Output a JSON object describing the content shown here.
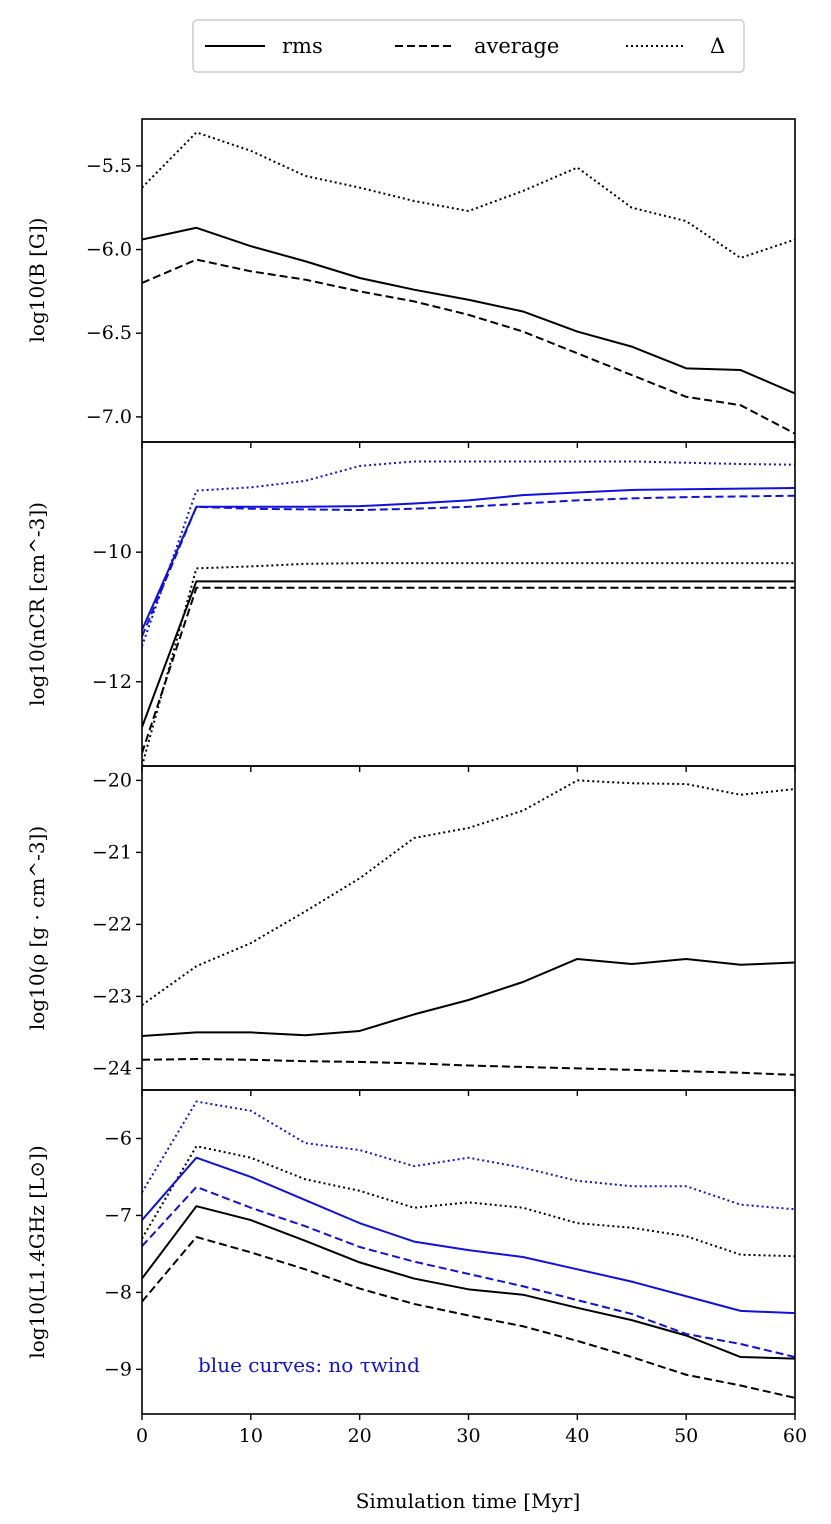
{
  "legend": {
    "location": "top-center",
    "entries": [
      {
        "label": "rms",
        "linestyle": "solid"
      },
      {
        "label": "average",
        "linestyle": "dashed"
      },
      {
        "label": "Δ",
        "linestyle": "dotted"
      }
    ]
  },
  "colors": {
    "black": "#000000",
    "blue": "#1010e0"
  },
  "chart_data": [
    {
      "type": "line",
      "panel": "B",
      "ylabel": "log10(B [G])",
      "ylim": [
        -7.15,
        -5.22
      ],
      "yticks": [
        -7.0,
        -6.5,
        -6.0,
        -5.5
      ],
      "ytick_labels": [
        "−7.0",
        "−6.5",
        "−6.0",
        "−5.5"
      ],
      "x": [
        0,
        5,
        10,
        15,
        20,
        25,
        30,
        35,
        40,
        45,
        50,
        55,
        60
      ],
      "series": [
        {
          "name": "rms",
          "color": "black",
          "style": "solid",
          "values": [
            -5.94,
            -5.87,
            -5.98,
            -6.07,
            -6.17,
            -6.24,
            -6.3,
            -6.37,
            -6.49,
            -6.58,
            -6.71,
            -6.72,
            -6.86
          ]
        },
        {
          "name": "average",
          "color": "black",
          "style": "dashed",
          "values": [
            -6.2,
            -6.06,
            -6.13,
            -6.18,
            -6.25,
            -6.31,
            -6.39,
            -6.49,
            -6.62,
            -6.75,
            -6.88,
            -6.93,
            -7.1
          ]
        },
        {
          "name": "Δ",
          "color": "black",
          "style": "dotted",
          "values": [
            -5.63,
            -5.3,
            -5.41,
            -5.56,
            -5.63,
            -5.71,
            -5.77,
            -5.65,
            -5.51,
            -5.75,
            -5.83,
            -6.05,
            -5.94
          ]
        }
      ]
    },
    {
      "type": "line",
      "panel": "nCR",
      "ylabel": "log10(nCR [cm^-3])",
      "ylim": [
        -13.3,
        -8.3
      ],
      "yticks": [
        -12,
        -10
      ],
      "ytick_labels": [
        "−12",
        "−10"
      ],
      "x": [
        0,
        5,
        10,
        15,
        20,
        25,
        30,
        35,
        40,
        45,
        50,
        55,
        60
      ],
      "series": [
        {
          "name": "rms",
          "color": "black",
          "style": "solid",
          "values": [
            -12.7,
            -10.45,
            -10.45,
            -10.45,
            -10.45,
            -10.45,
            -10.45,
            -10.45,
            -10.45,
            -10.45,
            -10.45,
            -10.45,
            -10.45
          ]
        },
        {
          "name": "average",
          "color": "black",
          "style": "dashed",
          "values": [
            -13.1,
            -10.55,
            -10.55,
            -10.55,
            -10.55,
            -10.55,
            -10.55,
            -10.55,
            -10.55,
            -10.55,
            -10.55,
            -10.55,
            -10.55
          ]
        },
        {
          "name": "Δ",
          "color": "black",
          "style": "dotted",
          "values": [
            -13.3,
            -10.25,
            -10.22,
            -10.18,
            -10.17,
            -10.17,
            -10.17,
            -10.17,
            -10.17,
            -10.17,
            -10.17,
            -10.17,
            -10.17
          ]
        },
        {
          "name": "rms (no τwind)",
          "color": "blue",
          "style": "solid",
          "values": [
            -11.2,
            -9.3,
            -9.3,
            -9.3,
            -9.29,
            -9.25,
            -9.2,
            -9.12,
            -9.08,
            -9.04,
            -9.03,
            -9.02,
            -9.01
          ]
        },
        {
          "name": "average (no τwind)",
          "color": "blue",
          "style": "dashed",
          "values": [
            -11.3,
            -9.3,
            -9.33,
            -9.34,
            -9.35,
            -9.33,
            -9.3,
            -9.25,
            -9.2,
            -9.17,
            -9.15,
            -9.14,
            -9.13
          ]
        },
        {
          "name": "Δ (no τwind)",
          "color": "blue",
          "style": "dotted",
          "values": [
            -11.45,
            -9.05,
            -9.0,
            -8.9,
            -8.67,
            -8.6,
            -8.6,
            -8.6,
            -8.6,
            -8.6,
            -8.62,
            -8.64,
            -8.65
          ]
        }
      ]
    },
    {
      "type": "line",
      "panel": "rho",
      "ylabel": "log10(ρ [g · cm^-3])",
      "ylim": [
        -24.3,
        -19.8
      ],
      "yticks": [
        -24,
        -23,
        -22,
        -21,
        -20
      ],
      "ytick_labels": [
        "−24",
        "−23",
        "−22",
        "−21",
        "−20"
      ],
      "x": [
        0,
        5,
        10,
        15,
        20,
        25,
        30,
        35,
        40,
        45,
        50,
        55,
        60
      ],
      "series": [
        {
          "name": "rms",
          "color": "black",
          "style": "solid",
          "values": [
            -23.55,
            -23.5,
            -23.5,
            -23.54,
            -23.48,
            -23.25,
            -23.05,
            -22.8,
            -22.48,
            -22.55,
            -22.48,
            -22.56,
            -22.53
          ]
        },
        {
          "name": "average",
          "color": "black",
          "style": "dashed",
          "values": [
            -23.88,
            -23.87,
            -23.88,
            -23.9,
            -23.91,
            -23.93,
            -23.96,
            -23.98,
            -24.0,
            -24.02,
            -24.04,
            -24.06,
            -24.09
          ]
        },
        {
          "name": "Δ",
          "color": "black",
          "style": "dotted",
          "values": [
            -23.12,
            -22.58,
            -22.26,
            -21.82,
            -21.36,
            -20.8,
            -20.66,
            -20.42,
            -20.0,
            -20.04,
            -20.05,
            -20.2,
            -20.12
          ]
        }
      ]
    },
    {
      "type": "line",
      "panel": "L",
      "ylabel": "log10(L1.4GHz [L⊙])",
      "xlabel": "Simulation time [Myr]",
      "xlim": [
        0,
        60
      ],
      "xticks": [
        0,
        10,
        20,
        30,
        40,
        50,
        60
      ],
      "xtick_labels": [
        "0",
        "10",
        "20",
        "30",
        "40",
        "50",
        "60"
      ],
      "ylim": [
        -9.58,
        -5.37
      ],
      "yticks": [
        -9,
        -8,
        -7,
        -6
      ],
      "ytick_labels": [
        "−9",
        "−8",
        "−7",
        "−6"
      ],
      "annotation": "blue curves: no τwind",
      "x": [
        0,
        5,
        10,
        15,
        20,
        25,
        30,
        35,
        40,
        45,
        50,
        55,
        60
      ],
      "series": [
        {
          "name": "rms",
          "color": "black",
          "style": "solid",
          "values": [
            -7.82,
            -6.88,
            -7.06,
            -7.33,
            -7.61,
            -7.82,
            -7.96,
            -8.03,
            -8.2,
            -8.36,
            -8.56,
            -8.84,
            -8.86
          ]
        },
        {
          "name": "average",
          "color": "black",
          "style": "dashed",
          "values": [
            -8.12,
            -7.28,
            -7.48,
            -7.7,
            -7.95,
            -8.15,
            -8.3,
            -8.44,
            -8.63,
            -8.84,
            -9.07,
            -9.21,
            -9.37
          ]
        },
        {
          "name": "Δ",
          "color": "black",
          "style": "dotted",
          "values": [
            -7.3,
            -6.1,
            -6.25,
            -6.53,
            -6.68,
            -6.9,
            -6.83,
            -6.9,
            -7.1,
            -7.16,
            -7.27,
            -7.51,
            -7.53
          ]
        },
        {
          "name": "rms (no τwind)",
          "color": "blue",
          "style": "solid",
          "values": [
            -7.06,
            -6.25,
            -6.5,
            -6.8,
            -7.1,
            -7.34,
            -7.45,
            -7.54,
            -7.7,
            -7.86,
            -8.05,
            -8.24,
            -8.27
          ]
        },
        {
          "name": "average (no τwind)",
          "color": "blue",
          "style": "dashed",
          "values": [
            -7.4,
            -6.63,
            -6.9,
            -7.14,
            -7.41,
            -7.6,
            -7.76,
            -7.92,
            -8.1,
            -8.28,
            -8.54,
            -8.67,
            -8.84
          ]
        },
        {
          "name": "Δ (no τwind)",
          "color": "blue",
          "style": "dotted",
          "values": [
            -6.7,
            -5.52,
            -5.64,
            -6.06,
            -6.15,
            -6.36,
            -6.25,
            -6.38,
            -6.55,
            -6.62,
            -6.62,
            -6.86,
            -6.92
          ]
        }
      ]
    }
  ]
}
